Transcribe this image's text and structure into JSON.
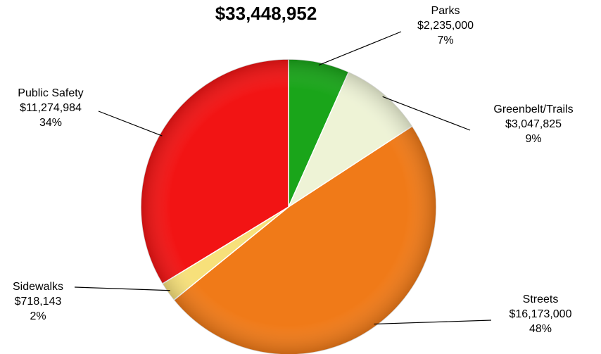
{
  "chart_data": {
    "type": "pie",
    "title": "$33,448,952",
    "slices": [
      {
        "name": "Parks",
        "amount": "$2,235,000",
        "percent": "7%",
        "value": 2235000,
        "color": "#1aa51a"
      },
      {
        "name": "Greenbelt/Trails",
        "amount": "$3,047,825",
        "percent": "9%",
        "value": 3047825,
        "color": "#eef3d6"
      },
      {
        "name": "Streets",
        "amount": "$16,173,000",
        "percent": "48%",
        "value": 16173000,
        "color": "#f07a18"
      },
      {
        "name": "Sidewalks",
        "amount": "$718,143",
        "percent": "2%",
        "value": 718143,
        "color": "#f7e07a"
      },
      {
        "name": "Public Safety",
        "amount": "$11,274,984",
        "percent": "34%",
        "value": 11274984,
        "color": "#f21414"
      }
    ],
    "start_angle": "12 o'clock",
    "direction": "clockwise",
    "legend": "none"
  }
}
